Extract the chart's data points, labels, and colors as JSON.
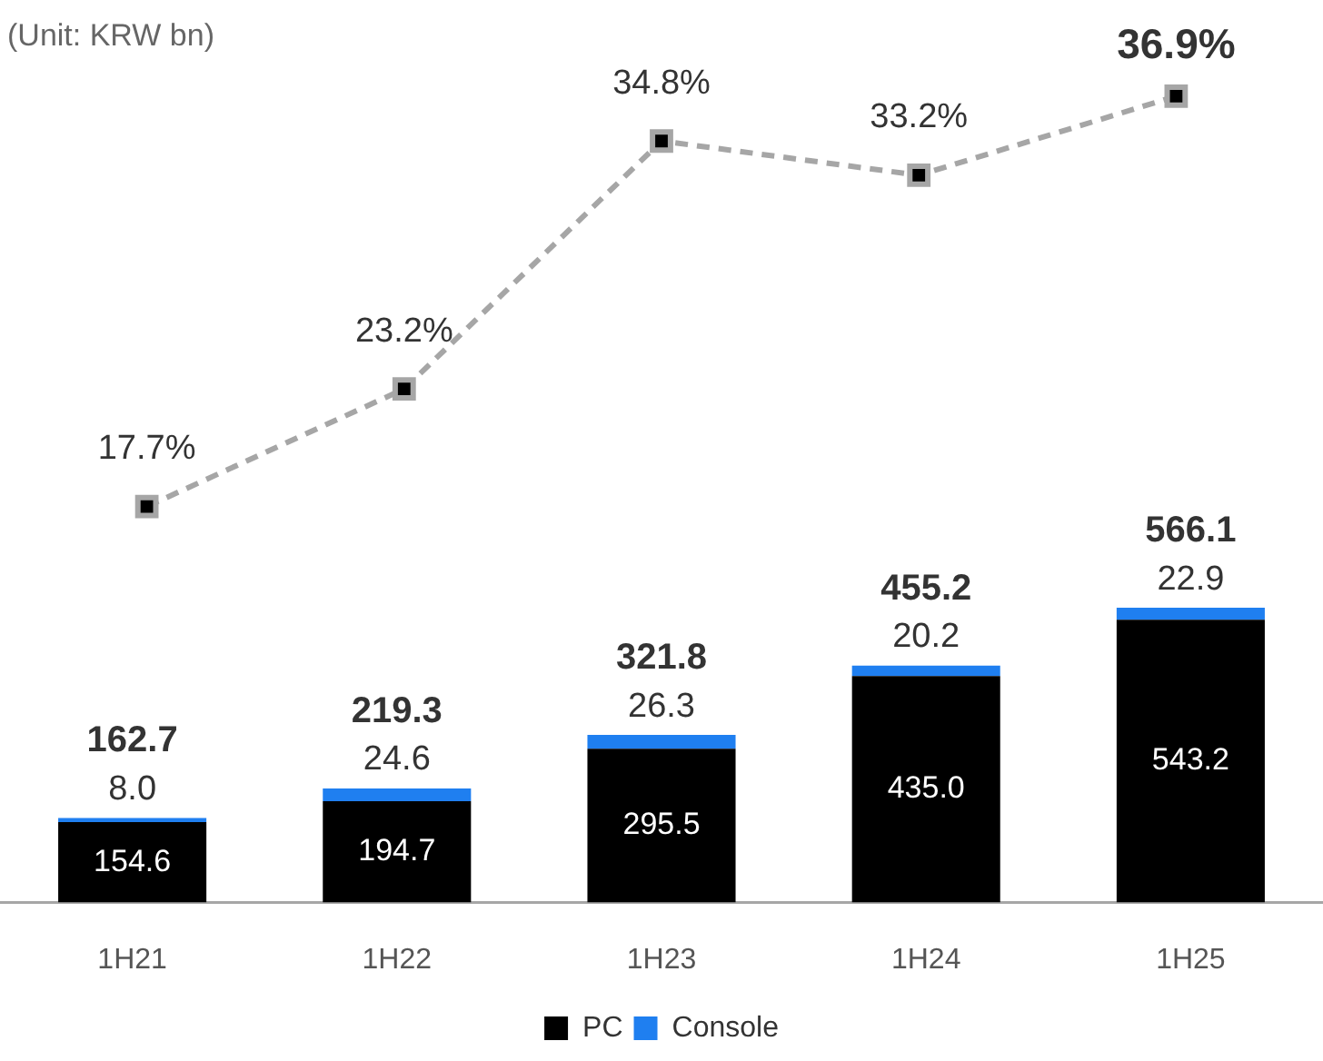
{
  "chart_data": [
    {
      "type": "bar",
      "stacked": true,
      "categories": [
        "1H21",
        "1H22",
        "1H23",
        "1H24",
        "1H25"
      ],
      "series": [
        {
          "name": "PC",
          "color": "#000000",
          "values": [
            154.6,
            194.7,
            295.5,
            435.0,
            543.2
          ],
          "value_labels": [
            "154.6",
            "194.7",
            "295.5",
            "435.0",
            "543.2"
          ]
        },
        {
          "name": "Console",
          "color": "#1f7ff0",
          "values": [
            8.0,
            24.6,
            26.3,
            20.2,
            22.9
          ],
          "value_labels": [
            "8.0",
            "24.6",
            "26.3",
            "20.2",
            "22.9"
          ]
        }
      ],
      "totals": [
        "162.7",
        "219.3",
        "321.8",
        "455.2",
        "566.1"
      ],
      "tick_labels": "x",
      "grid": false,
      "legend": "bottom",
      "annotations": [
        "(Unit: KRW bn)"
      ]
    },
    {
      "type": "line",
      "categories": [
        null,
        null,
        null,
        null,
        null
      ],
      "series": [
        {
          "color": "#a6a6a6",
          "values": [
            17.7,
            23.2,
            34.8,
            33.2,
            36.9
          ],
          "value_labels": [
            "17.7%",
            "23.2%",
            "34.8%",
            "33.2%",
            "36.9%"
          ],
          "marker": "square",
          "line_style": "dashed"
        }
      ],
      "tick_labels": false,
      "grid": false
    }
  ]
}
